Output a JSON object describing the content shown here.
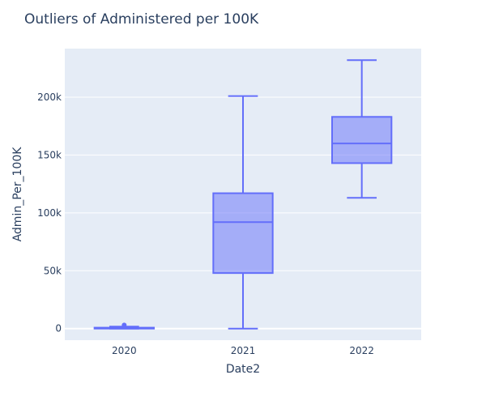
{
  "chart_data": {
    "type": "box",
    "title": "Outliers of Administered per 100K",
    "xlabel": "Date2",
    "ylabel": "Admin_Per_100K",
    "categories": [
      "2020",
      "2021",
      "2022"
    ],
    "ylim": [
      -10000,
      242000
    ],
    "yticks": [
      0,
      50000,
      100000,
      150000,
      200000
    ],
    "ytick_labels": [
      "0",
      "50k",
      "100k",
      "150k",
      "200k"
    ],
    "grid": true,
    "boxes": [
      {
        "category": "2020",
        "min": 0,
        "q1": 0,
        "median": 300,
        "q3": 800,
        "max": 1700,
        "outliers": [
          3000
        ]
      },
      {
        "category": "2021",
        "min": 0,
        "q1": 48000,
        "median": 92000,
        "q3": 117000,
        "max": 201000,
        "outliers": []
      },
      {
        "category": "2022",
        "min": 113000,
        "q1": 143000,
        "median": 160000,
        "q3": 183000,
        "max": 232000,
        "outliers": []
      }
    ],
    "colors": {
      "line": "#636efa",
      "fill": "rgba(99,110,250,0.5)",
      "plot_bg": "#e5ecf6",
      "grid": "#ffffff",
      "text": "#2a3f5f"
    }
  }
}
